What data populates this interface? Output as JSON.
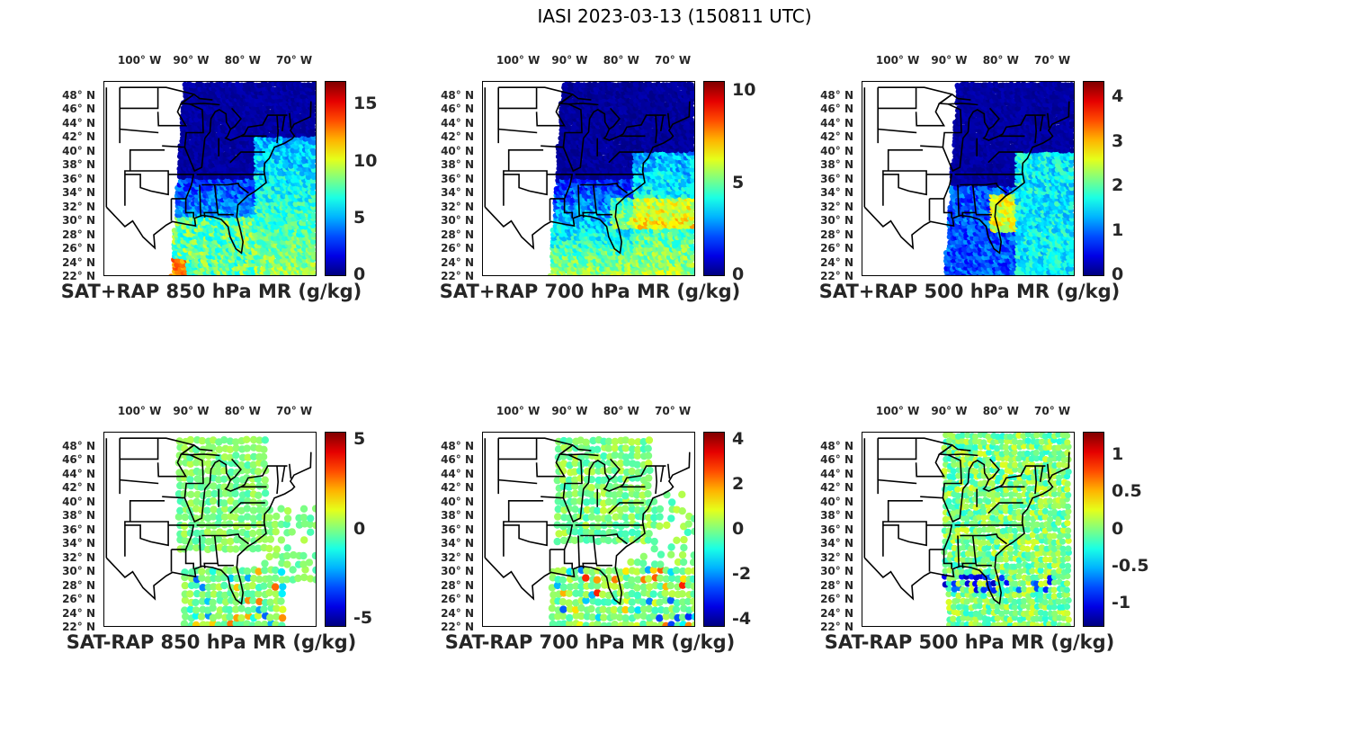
{
  "title": "IASI 2023-03-13 (150811 UTC)",
  "longitude_labels": [
    "100° W",
    "90° W",
    "80° W",
    "70° W"
  ],
  "latitude_labels": [
    "48° N",
    "46° N",
    "44° N",
    "42° N",
    "40° N",
    "38° N",
    "36° N",
    "34° N",
    "32° N",
    "30° N",
    "28° N",
    "26° N",
    "24° N",
    "22° N"
  ],
  "colormap": "jet",
  "panels": [
    {
      "caption": "SAT+RAP 850 hPa MR (g/kg)",
      "cbar_range": [
        0,
        17
      ],
      "cbar_ticks": [
        "0",
        "5",
        "10",
        "15"
      ],
      "tick_values": [
        0,
        5,
        10,
        15
      ],
      "kind": "total",
      "level": "850"
    },
    {
      "caption": "SAT+RAP 700 hPa MR (g/kg)",
      "cbar_range": [
        0,
        10.5
      ],
      "cbar_ticks": [
        "0",
        "5",
        "10"
      ],
      "tick_values": [
        0,
        5,
        10
      ],
      "kind": "total",
      "level": "700"
    },
    {
      "caption": "SAT+RAP 500 hPa MR (g/kg)",
      "cbar_range": [
        0,
        4.35
      ],
      "cbar_ticks": [
        "0",
        "1",
        "2",
        "3",
        "4"
      ],
      "tick_values": [
        0,
        1,
        2,
        3,
        4
      ],
      "kind": "total",
      "level": "500"
    },
    {
      "caption": "SAT-RAP 850 hPa MR (g/kg)",
      "cbar_range": [
        -5.4,
        5.4
      ],
      "cbar_ticks": [
        "-5",
        "0",
        "5"
      ],
      "tick_values": [
        -5,
        0,
        5
      ],
      "kind": "diff",
      "level": "850"
    },
    {
      "caption": "SAT-RAP 700 hPa MR (g/kg)",
      "cbar_range": [
        -4.3,
        4.3
      ],
      "cbar_ticks": [
        "-4",
        "-2",
        "0",
        "2",
        "4"
      ],
      "tick_values": [
        -4,
        -2,
        0,
        2,
        4
      ],
      "kind": "diff",
      "level": "700"
    },
    {
      "caption": "SAT-RAP 500 hPa MR (g/kg)",
      "cbar_range": [
        -1.3,
        1.3
      ],
      "cbar_ticks": [
        "-1",
        "-0.5",
        "0",
        "0.5",
        "1"
      ],
      "tick_values": [
        -1,
        -0.5,
        0,
        0.5,
        1
      ],
      "kind": "diff",
      "level": "500"
    }
  ]
}
